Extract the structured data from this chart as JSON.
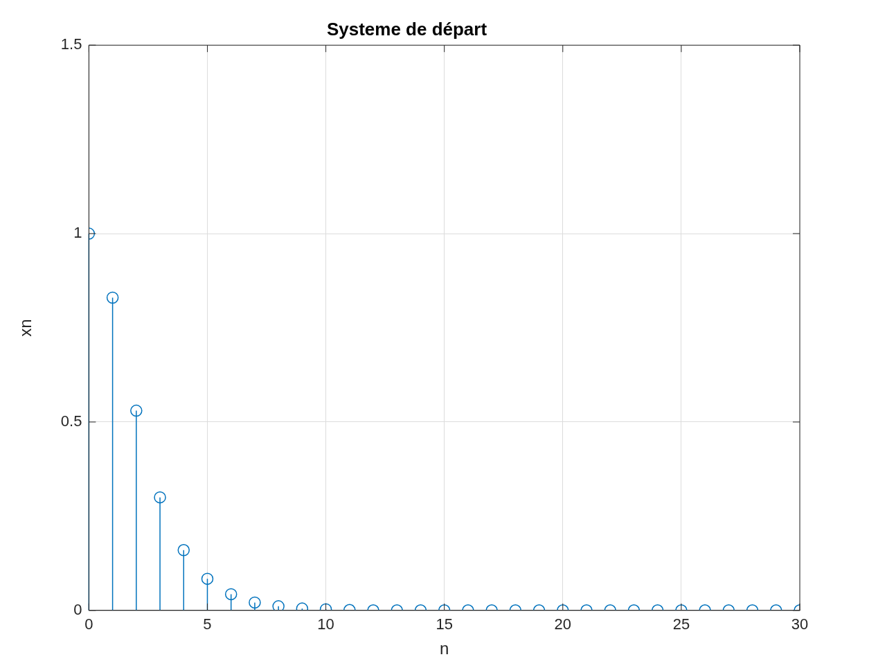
{
  "chart_data": {
    "type": "lollipop",
    "title": "Systeme de départ",
    "xlabel": "n",
    "ylabel": "xn",
    "x": [
      0,
      1,
      2,
      3,
      4,
      5,
      6,
      7,
      8,
      9,
      10,
      11,
      12,
      13,
      14,
      15,
      16,
      17,
      18,
      19,
      20,
      21,
      22,
      23,
      24,
      25,
      26,
      27,
      28,
      29,
      30
    ],
    "values": [
      1,
      0.83,
      0.53,
      0.3,
      0.16,
      0.084,
      0.043,
      0.021,
      0.011,
      0.005,
      0.003,
      0.001,
      0,
      0,
      0,
      0,
      0,
      0,
      0,
      0,
      0,
      0,
      0,
      0,
      0,
      0,
      0,
      0,
      0,
      0,
      0
    ],
    "color": "#0072bd",
    "marker": "circle",
    "grid": true,
    "xlim": [
      0,
      30
    ],
    "xticks": [
      0,
      5,
      10,
      15,
      20,
      25,
      30
    ],
    "ylim": [
      0,
      1.5
    ],
    "yticks": [
      0,
      0.5,
      1,
      1.5
    ]
  }
}
